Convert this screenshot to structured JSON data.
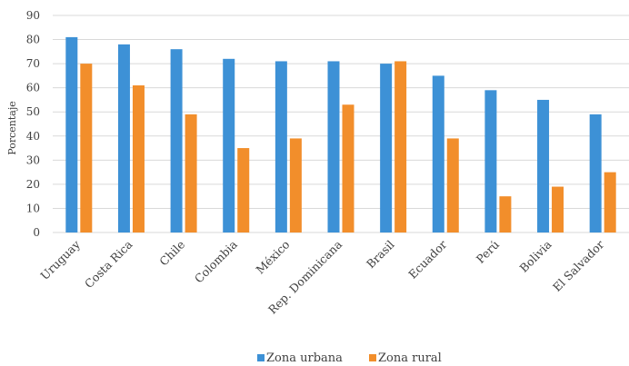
{
  "chart_data": {
    "type": "bar",
    "ylabel": "Porcentaje",
    "ylim": [
      0,
      90
    ],
    "yticks": [
      0,
      10,
      20,
      30,
      40,
      50,
      60,
      70,
      80,
      90
    ],
    "grid": true,
    "legend_position": "bottom",
    "categories": [
      "Uruguay",
      "Costa Rica",
      "Chile",
      "Colombia",
      "México",
      "Rep. Dominicana",
      "Brasil",
      "Ecuador",
      "Perú",
      "Bolivia",
      "El Salvador"
    ],
    "series": [
      {
        "name": "Zona urbana",
        "color": "#3d91d6",
        "values": [
          81,
          78,
          76,
          72,
          71,
          71,
          70,
          65,
          59,
          55,
          49
        ]
      },
      {
        "name": "Zona rural",
        "color": "#f28e2b",
        "values": [
          70,
          61,
          49,
          35,
          39,
          53,
          71,
          39,
          15,
          19,
          25
        ]
      }
    ]
  }
}
